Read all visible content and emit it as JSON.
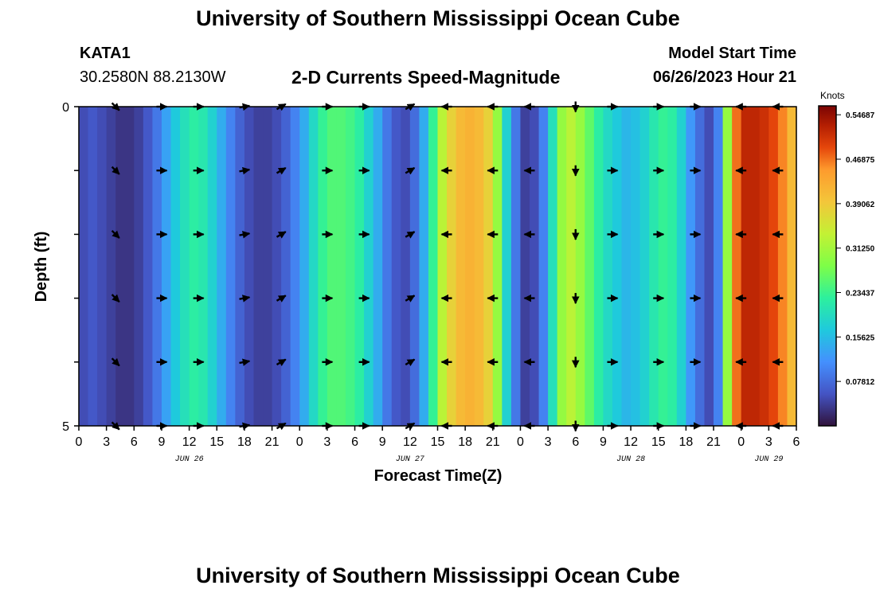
{
  "page": {
    "title": "University of Southern Mississippi Ocean Cube",
    "title_repeat": "University of Southern Mississippi Ocean Cube",
    "station_id": "KATA1",
    "station_coords": "30.2580N  88.2130W",
    "plot_title": "2-D Currents Speed-Magnitude",
    "model_start_label": "Model Start Time",
    "model_start_value": "06/26/2023 Hour 21"
  },
  "chart_data": {
    "type": "heatmap",
    "title": "2-D Currents Speed-Magnitude",
    "xlabel": "Forecast Time(Z)",
    "ylabel": "Depth (ft)",
    "x_tick_labels": [
      "0",
      "3",
      "6",
      "9",
      "12",
      "15",
      "18",
      "21",
      "0",
      "3",
      "6",
      "9",
      "12",
      "15",
      "18",
      "21",
      "0",
      "3",
      "6",
      "9",
      "12",
      "15",
      "18",
      "21",
      "0",
      "3",
      "6"
    ],
    "x_hours_range": [
      0,
      78
    ],
    "date_labels": [
      {
        "text": "JUN 26",
        "hour": 12
      },
      {
        "text": "JUN 27",
        "hour": 36
      },
      {
        "text": "JUN 28",
        "hour": 60
      },
      {
        "text": "JUN 29",
        "hour": 75
      }
    ],
    "y_tick_labels": [
      "0",
      "5"
    ],
    "ylim": [
      0,
      5
    ],
    "depth_levels_ft": [
      0,
      1,
      2,
      3,
      4,
      5
    ],
    "colorbar": {
      "label": "Knots",
      "min": 0,
      "max": 0.5625,
      "tick_values": [
        0.546875,
        0.46875,
        0.390625,
        0.3125,
        0.234375,
        0.15625,
        0.078125
      ],
      "tick_labels": [
        "0.54687",
        "0.46875",
        "0.39062",
        "0.31250",
        "0.23437",
        "0.15625",
        "0.07812"
      ]
    },
    "speed_knots_by_hour": [
      0.05,
      0.06,
      0.05,
      0.04,
      0.03,
      0.03,
      0.04,
      0.06,
      0.09,
      0.13,
      0.17,
      0.2,
      0.22,
      0.21,
      0.18,
      0.14,
      0.1,
      0.07,
      0.05,
      0.04,
      0.04,
      0.05,
      0.07,
      0.1,
      0.14,
      0.19,
      0.23,
      0.25,
      0.25,
      0.24,
      0.22,
      0.18,
      0.14,
      0.09,
      0.06,
      0.05,
      0.08,
      0.14,
      0.23,
      0.33,
      0.38,
      0.41,
      0.42,
      0.41,
      0.38,
      0.3,
      0.18,
      0.09,
      0.04,
      0.05,
      0.1,
      0.2,
      0.3,
      0.33,
      0.3,
      0.26,
      0.22,
      0.19,
      0.17,
      0.15,
      0.16,
      0.18,
      0.21,
      0.23,
      0.22,
      0.18,
      0.12,
      0.08,
      0.05,
      0.1,
      0.3,
      0.47,
      0.52,
      0.52,
      0.51,
      0.49,
      0.46,
      0.41
    ],
    "arrow_hours": [
      4,
      9,
      13,
      18,
      22,
      27,
      31,
      36,
      40,
      45,
      49,
      54,
      58,
      63,
      67,
      72,
      76
    ],
    "arrow_directions_deg": [
      135,
      90,
      90,
      80,
      60,
      90,
      90,
      60,
      270,
      270,
      270,
      180,
      90,
      90,
      90,
      270,
      270
    ]
  }
}
